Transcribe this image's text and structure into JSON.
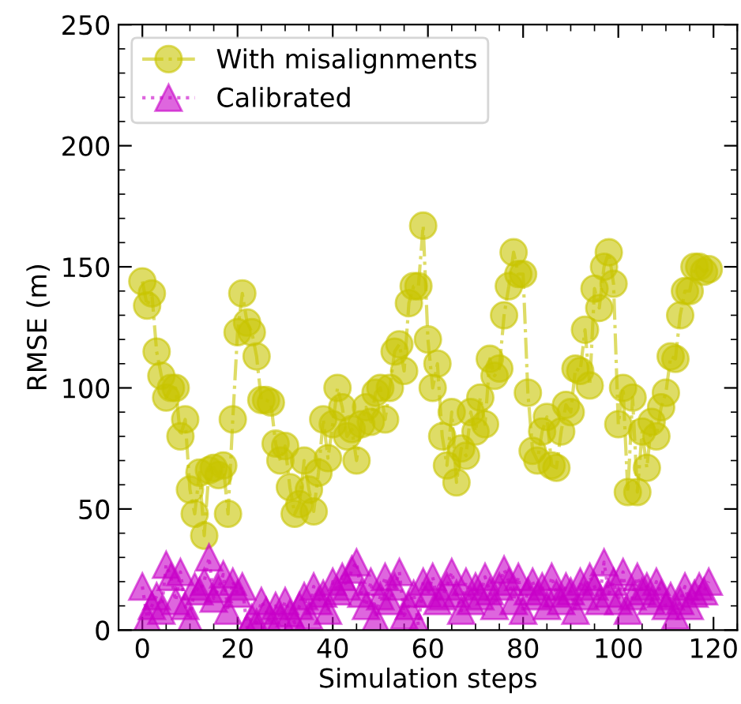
{
  "chart_data": {
    "type": "line",
    "xlabel": "Simulation steps",
    "ylabel": "RMSE (m)",
    "x": [
      0,
      1,
      2,
      3,
      4,
      5,
      6,
      7,
      8,
      9,
      10,
      11,
      12,
      13,
      14,
      15,
      16,
      17,
      18,
      19,
      20,
      21,
      22,
      23,
      24,
      25,
      26,
      27,
      28,
      29,
      30,
      31,
      32,
      33,
      34,
      35,
      36,
      37,
      38,
      39,
      40,
      41,
      42,
      43,
      44,
      45,
      46,
      47,
      48,
      49,
      50,
      51,
      52,
      53,
      54,
      55,
      56,
      57,
      58,
      59,
      60,
      61,
      62,
      63,
      64,
      65,
      66,
      67,
      68,
      69,
      70,
      71,
      72,
      73,
      74,
      75,
      76,
      77,
      78,
      79,
      80,
      81,
      82,
      83,
      84,
      85,
      86,
      87,
      88,
      89,
      90,
      91,
      92,
      93,
      94,
      95,
      96,
      97,
      98,
      99,
      100,
      101,
      102,
      103,
      104,
      105,
      106,
      107,
      108,
      109,
      110,
      111,
      112,
      113,
      114,
      115,
      116,
      117,
      118,
      119
    ],
    "series": [
      {
        "name": "With misalignments",
        "color": "#c8c400",
        "marker": "circle",
        "line_style": "dashed",
        "values": [
          144,
          134,
          139,
          115,
          105,
          96,
          100,
          100,
          80,
          87,
          58,
          48,
          65,
          39,
          66,
          67,
          64,
          68,
          48,
          87,
          123,
          139,
          127,
          123,
          113,
          95,
          95,
          94,
          77,
          70,
          76,
          59,
          48,
          52,
          70,
          58,
          49,
          65,
          87,
          71,
          85,
          100,
          92,
          80,
          83,
          70,
          85,
          92,
          86,
          98,
          100,
          87,
          100,
          115,
          118,
          107,
          135,
          142,
          142,
          167,
          120,
          100,
          110,
          80,
          68,
          90,
          61,
          75,
          72,
          90,
          82,
          96,
          85,
          112,
          105,
          108,
          130,
          142,
          156,
          147,
          147,
          98,
          74,
          70,
          82,
          88,
          68,
          67,
          82,
          93,
          90,
          108,
          107,
          124,
          101,
          141,
          133,
          150,
          156,
          143,
          85,
          100,
          57,
          96,
          57,
          82,
          67,
          86,
          80,
          92,
          98,
          113,
          112,
          130,
          140,
          140,
          150,
          150,
          148,
          149
        ]
      },
      {
        "name": "Calibrated",
        "color": "#c800c8",
        "marker": "triangle",
        "line_style": "dotted",
        "values": [
          18,
          5,
          10,
          14,
          8,
          27,
          22,
          12,
          24,
          10,
          4,
          18,
          16,
          20,
          30,
          13,
          17,
          23,
          8,
          20,
          15,
          18,
          1,
          5,
          3,
          12,
          8,
          2,
          10,
          5,
          12,
          7,
          3,
          10,
          14,
          6,
          18,
          12,
          15,
          8,
          20,
          16,
          22,
          18,
          25,
          28,
          15,
          10,
          20,
          5,
          14,
          22,
          12,
          18,
          24,
          6,
          10,
          15,
          2,
          20,
          15,
          22,
          12,
          14,
          18,
          24,
          15,
          8,
          20,
          12,
          18,
          14,
          22,
          16,
          10,
          18,
          25,
          20,
          12,
          22,
          8,
          16,
          20,
          14,
          18,
          10,
          22,
          15,
          12,
          18,
          16,
          8,
          20,
          14,
          22,
          18,
          12,
          28,
          15,
          20,
          12,
          24,
          8,
          14,
          22,
          16,
          18,
          12,
          20,
          15,
          10,
          14,
          6,
          12,
          18,
          10,
          15,
          18,
          16,
          20
        ]
      }
    ],
    "xlim": [
      -5,
      125
    ],
    "ylim": [
      0,
      250
    ],
    "xticks": [
      0,
      20,
      40,
      60,
      80,
      100,
      120
    ],
    "yticks": [
      0,
      50,
      100,
      150,
      200,
      250
    ],
    "grid": false,
    "legend": "top left"
  }
}
